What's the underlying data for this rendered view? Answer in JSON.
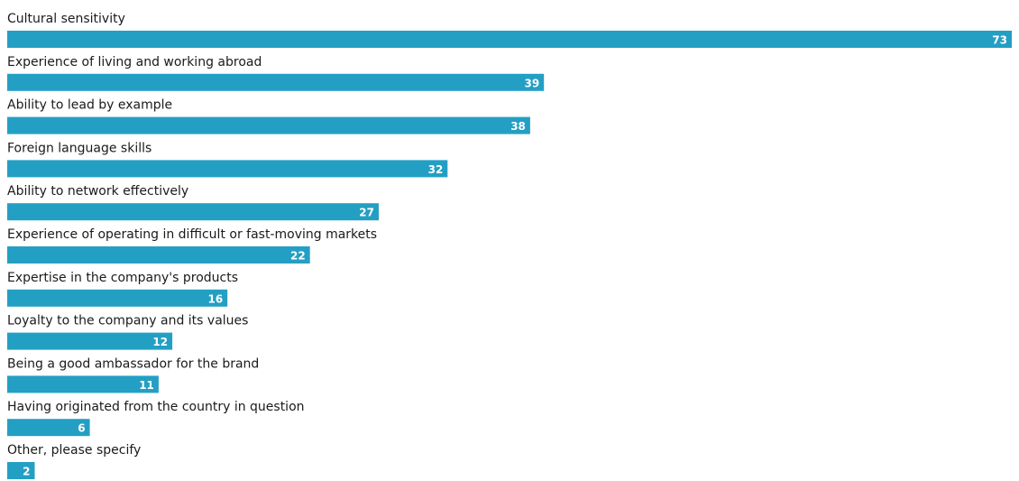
{
  "colors": {
    "bar": "#249fc4",
    "label_text": "#1a1a1a",
    "value_text": "#ffffff"
  },
  "chart_data": {
    "type": "bar",
    "orientation": "horizontal",
    "categories": [
      "Cultural sensitivity",
      "Experience of living and working abroad",
      "Ability to lead by example",
      "Foreign language skills",
      "Ability to network effectively",
      "Experience of operating in difficult or fast-moving markets",
      "Expertise in the company's products",
      "Loyalty to the company and its values",
      "Being a good ambassador for the brand",
      "Having originated from the country in question",
      "Other, please specify"
    ],
    "values": [
      73,
      39,
      38,
      32,
      27,
      22,
      16,
      12,
      11,
      6,
      2
    ],
    "data_labels": [
      "73",
      "39",
      "38",
      "32",
      "27",
      "22",
      "16",
      "12",
      "11",
      "6",
      "2"
    ],
    "title": "",
    "xlabel": "",
    "ylabel": "",
    "xlim": [
      0,
      73
    ],
    "grid": false,
    "legend": "none"
  }
}
